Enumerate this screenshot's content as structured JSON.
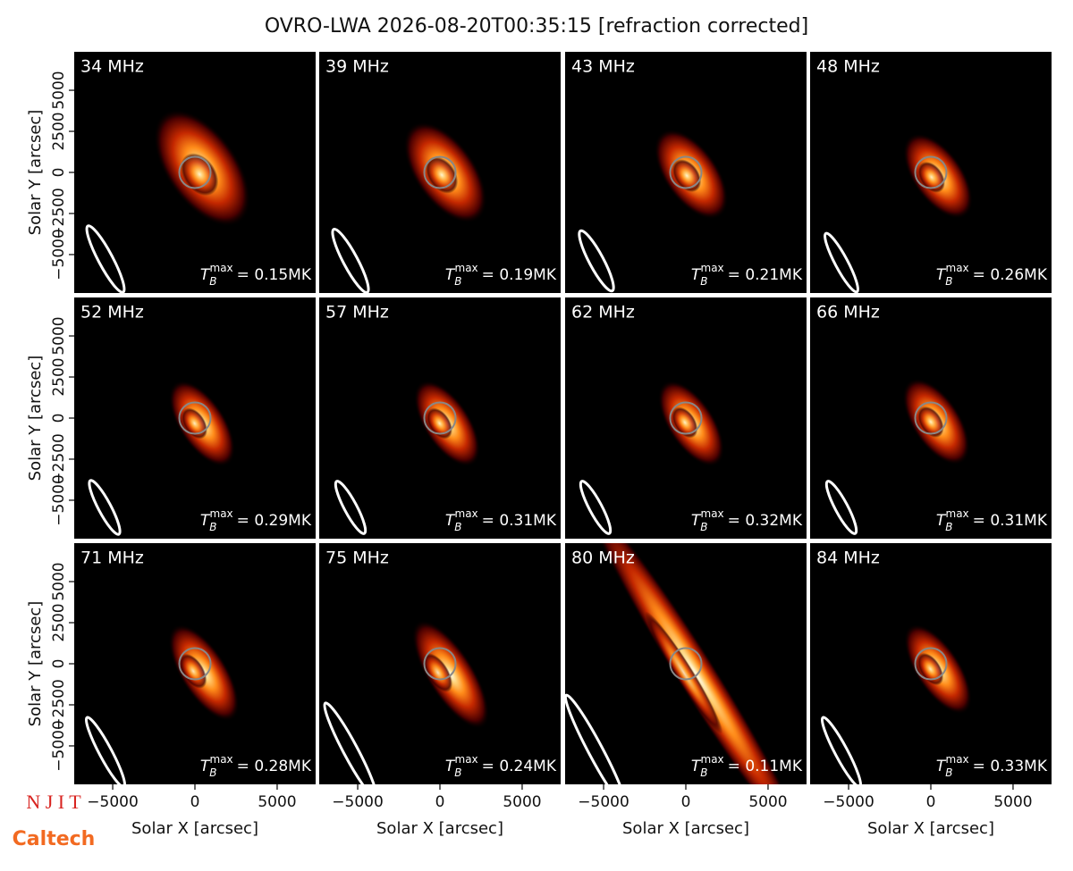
{
  "title": "OVRO-LWA 2026-08-20T00:35:15 [refraction corrected]",
  "axes": {
    "xlabel": "Solar X [arcsec]",
    "ylabel": "Solar Y [arcsec]",
    "xlim": [
      -7340,
      7340
    ],
    "ylim": [
      -7340,
      7340
    ],
    "xticks": [
      {
        "value": -5000,
        "label": "−5000"
      },
      0,
      5000
    ],
    "yticks": [
      {
        "value": -5000,
        "label": "−5000"
      },
      {
        "value": -2500,
        "label": "−2500"
      },
      0,
      2500,
      5000
    ]
  },
  "tb_symbol": {
    "base": "T",
    "sub": "B",
    "sup": "max"
  },
  "chart_data": [
    {
      "type": "image",
      "label": "34 MHz",
      "tb_max": {
        "value": 0.15,
        "label": "= 0.15MK"
      }
    },
    {
      "type": "image",
      "label": "39 MHz",
      "tb_max": {
        "value": 0.19,
        "label": "= 0.19MK"
      }
    },
    {
      "type": "image",
      "label": "43 MHz",
      "tb_max": {
        "value": 0.21,
        "label": "= 0.21MK"
      }
    },
    {
      "type": "image",
      "label": "48 MHz",
      "tb_max": {
        "value": 0.26,
        "label": "= 0.26MK"
      }
    },
    {
      "type": "image",
      "label": "52 MHz",
      "tb_max": {
        "value": 0.29,
        "label": "= 0.29MK"
      }
    },
    {
      "type": "image",
      "label": "57 MHz",
      "tb_max": {
        "value": 0.31,
        "label": "= 0.31MK"
      }
    },
    {
      "type": "image",
      "label": "62 MHz",
      "tb_max": {
        "value": 0.32,
        "label": "= 0.32MK"
      }
    },
    {
      "type": "image",
      "label": "66 MHz",
      "tb_max": {
        "value": 0.31,
        "label": "= 0.31MK"
      }
    },
    {
      "type": "image",
      "label": "71 MHz",
      "tb_max": {
        "value": 0.28,
        "label": "= 0.28MK"
      }
    },
    {
      "type": "image",
      "label": "75 MHz",
      "tb_max": {
        "value": 0.24,
        "label": "= 0.24MK"
      }
    },
    {
      "type": "image",
      "label": "80 MHz",
      "tb_max": {
        "value": 0.11,
        "label": "= 0.11MK"
      }
    },
    {
      "type": "image",
      "label": "84 MHz",
      "tb_max": {
        "value": 0.33,
        "label": "= 0.33MK"
      }
    }
  ],
  "logos": [
    "N J I T",
    "Caltech"
  ]
}
